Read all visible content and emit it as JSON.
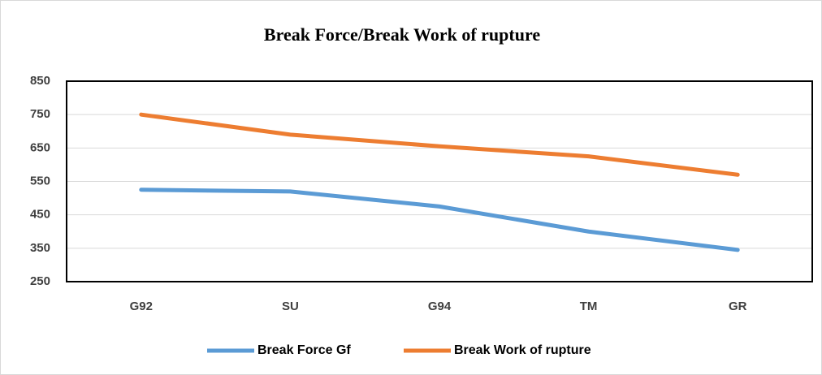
{
  "chart_data": {
    "type": "line",
    "title": "Break Force/Break Work of rupture",
    "categories": [
      "G92",
      "SU",
      "G94",
      "TM",
      "GR"
    ],
    "series": [
      {
        "name": "Break Force Gf",
        "color": "#5b9bd5",
        "values": [
          525,
          520,
          475,
          400,
          345
        ]
      },
      {
        "name": "Break Work of rupture",
        "color": "#ed7d31",
        "values": [
          750,
          690,
          655,
          625,
          570
        ]
      }
    ],
    "ylim": [
      250,
      850
    ],
    "yticks": [
      250,
      350,
      450,
      550,
      650,
      750,
      850
    ],
    "grid": true,
    "legend": "bottom"
  }
}
